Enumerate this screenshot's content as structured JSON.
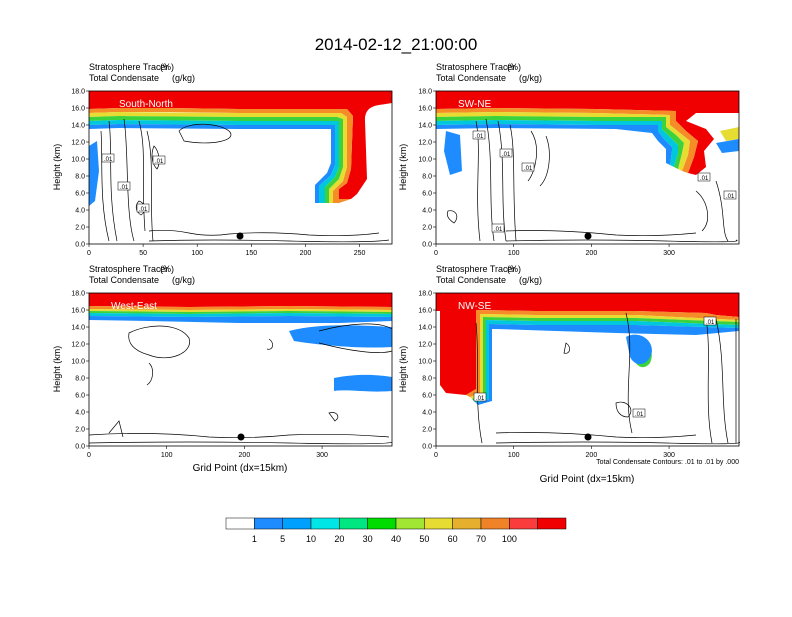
{
  "title": "2014-02-12_21:00:00",
  "footnote": "Total Condensate Contours: .01 to .01 by .000",
  "colorbar": {
    "labels": [
      "1",
      "5",
      "10",
      "20",
      "30",
      "40",
      "50",
      "60",
      "70",
      "100"
    ],
    "colors": [
      "#ffffff",
      "#1e8cff",
      "#00a0ff",
      "#00e6e6",
      "#00e680",
      "#00dc00",
      "#a0e632",
      "#e6dc32",
      "#e6af2d",
      "#f08228",
      "#fa3c3c",
      "#f00000"
    ]
  },
  "chart_data": [
    {
      "type": "heatmap",
      "panel_label": "South-North",
      "header_left_1": "Stratosphere Tracer",
      "header_right_1": "(%)",
      "header_left_2": "Total Condensate",
      "header_right_2": "(g/kg)",
      "xlabel": "",
      "ylabel": "Height (km)",
      "xlim": [
        0,
        280
      ],
      "ylim": [
        0,
        18
      ],
      "xticks": [
        "0",
        "50",
        "100",
        "150",
        "200",
        "250"
      ],
      "yticks": [
        "0.0",
        "2.0",
        "4.0",
        "6.0",
        "8.0",
        "10.0",
        "12.0",
        "14.0",
        "16.0",
        "18.0"
      ],
      "contour_labels": [
        ".01",
        ".01",
        ".01",
        ".01"
      ],
      "marker_x": 140
    },
    {
      "type": "heatmap",
      "panel_label": "SW-NE",
      "header_left_1": "Stratosphere Tracer",
      "header_right_1": "(%)",
      "header_left_2": "Total Condensate",
      "header_right_2": "(g/kg)",
      "xlabel": "",
      "ylabel": "Height (km)",
      "xlim": [
        0,
        390
      ],
      "ylim": [
        0,
        18
      ],
      "xticks": [
        "0",
        "100",
        "200",
        "300"
      ],
      "yticks": [
        "0.0",
        "2.0",
        "4.0",
        "6.0",
        "8.0",
        "10.0",
        "12.0",
        "14.0",
        "16.0",
        "18.0"
      ],
      "contour_labels": [
        ".01",
        ".01",
        ".01",
        ".01",
        ".01",
        ".01"
      ],
      "marker_x": 198
    },
    {
      "type": "heatmap",
      "panel_label": "West-East",
      "header_left_1": "Stratosphere Tracer",
      "header_right_1": "(%)",
      "header_left_2": "Total Condensate",
      "header_right_2": "(g/kg)",
      "xlabel": "Grid Point (dx=15km)",
      "ylabel": "Height (km)",
      "xlim": [
        0,
        390
      ],
      "ylim": [
        0,
        18
      ],
      "xticks": [
        "0",
        "100",
        "200",
        "300"
      ],
      "yticks": [
        "0.0",
        "2.0",
        "4.0",
        "6.0",
        "8.0",
        "10.0",
        "12.0",
        "14.0",
        "16.0",
        "18.0"
      ],
      "contour_labels": [],
      "marker_x": 198
    },
    {
      "type": "heatmap",
      "panel_label": "NW-SE",
      "header_left_1": "Stratosphere Tracer",
      "header_right_1": "(%)",
      "header_left_2": "Total Condensate",
      "header_right_2": "(g/kg)",
      "xlabel": "Grid Point (dx=15km)",
      "ylabel": "Height (km)",
      "xlim": [
        0,
        390
      ],
      "ylim": [
        0,
        18
      ],
      "xticks": [
        "0",
        "100",
        "200",
        "300"
      ],
      "yticks": [
        "0.0",
        "2.0",
        "4.0",
        "6.0",
        "8.0",
        "10.0",
        "12.0",
        "14.0",
        "16.0",
        "18.0"
      ],
      "contour_labels": [
        ".01",
        ".01",
        ".01"
      ],
      "marker_x": 198
    }
  ]
}
